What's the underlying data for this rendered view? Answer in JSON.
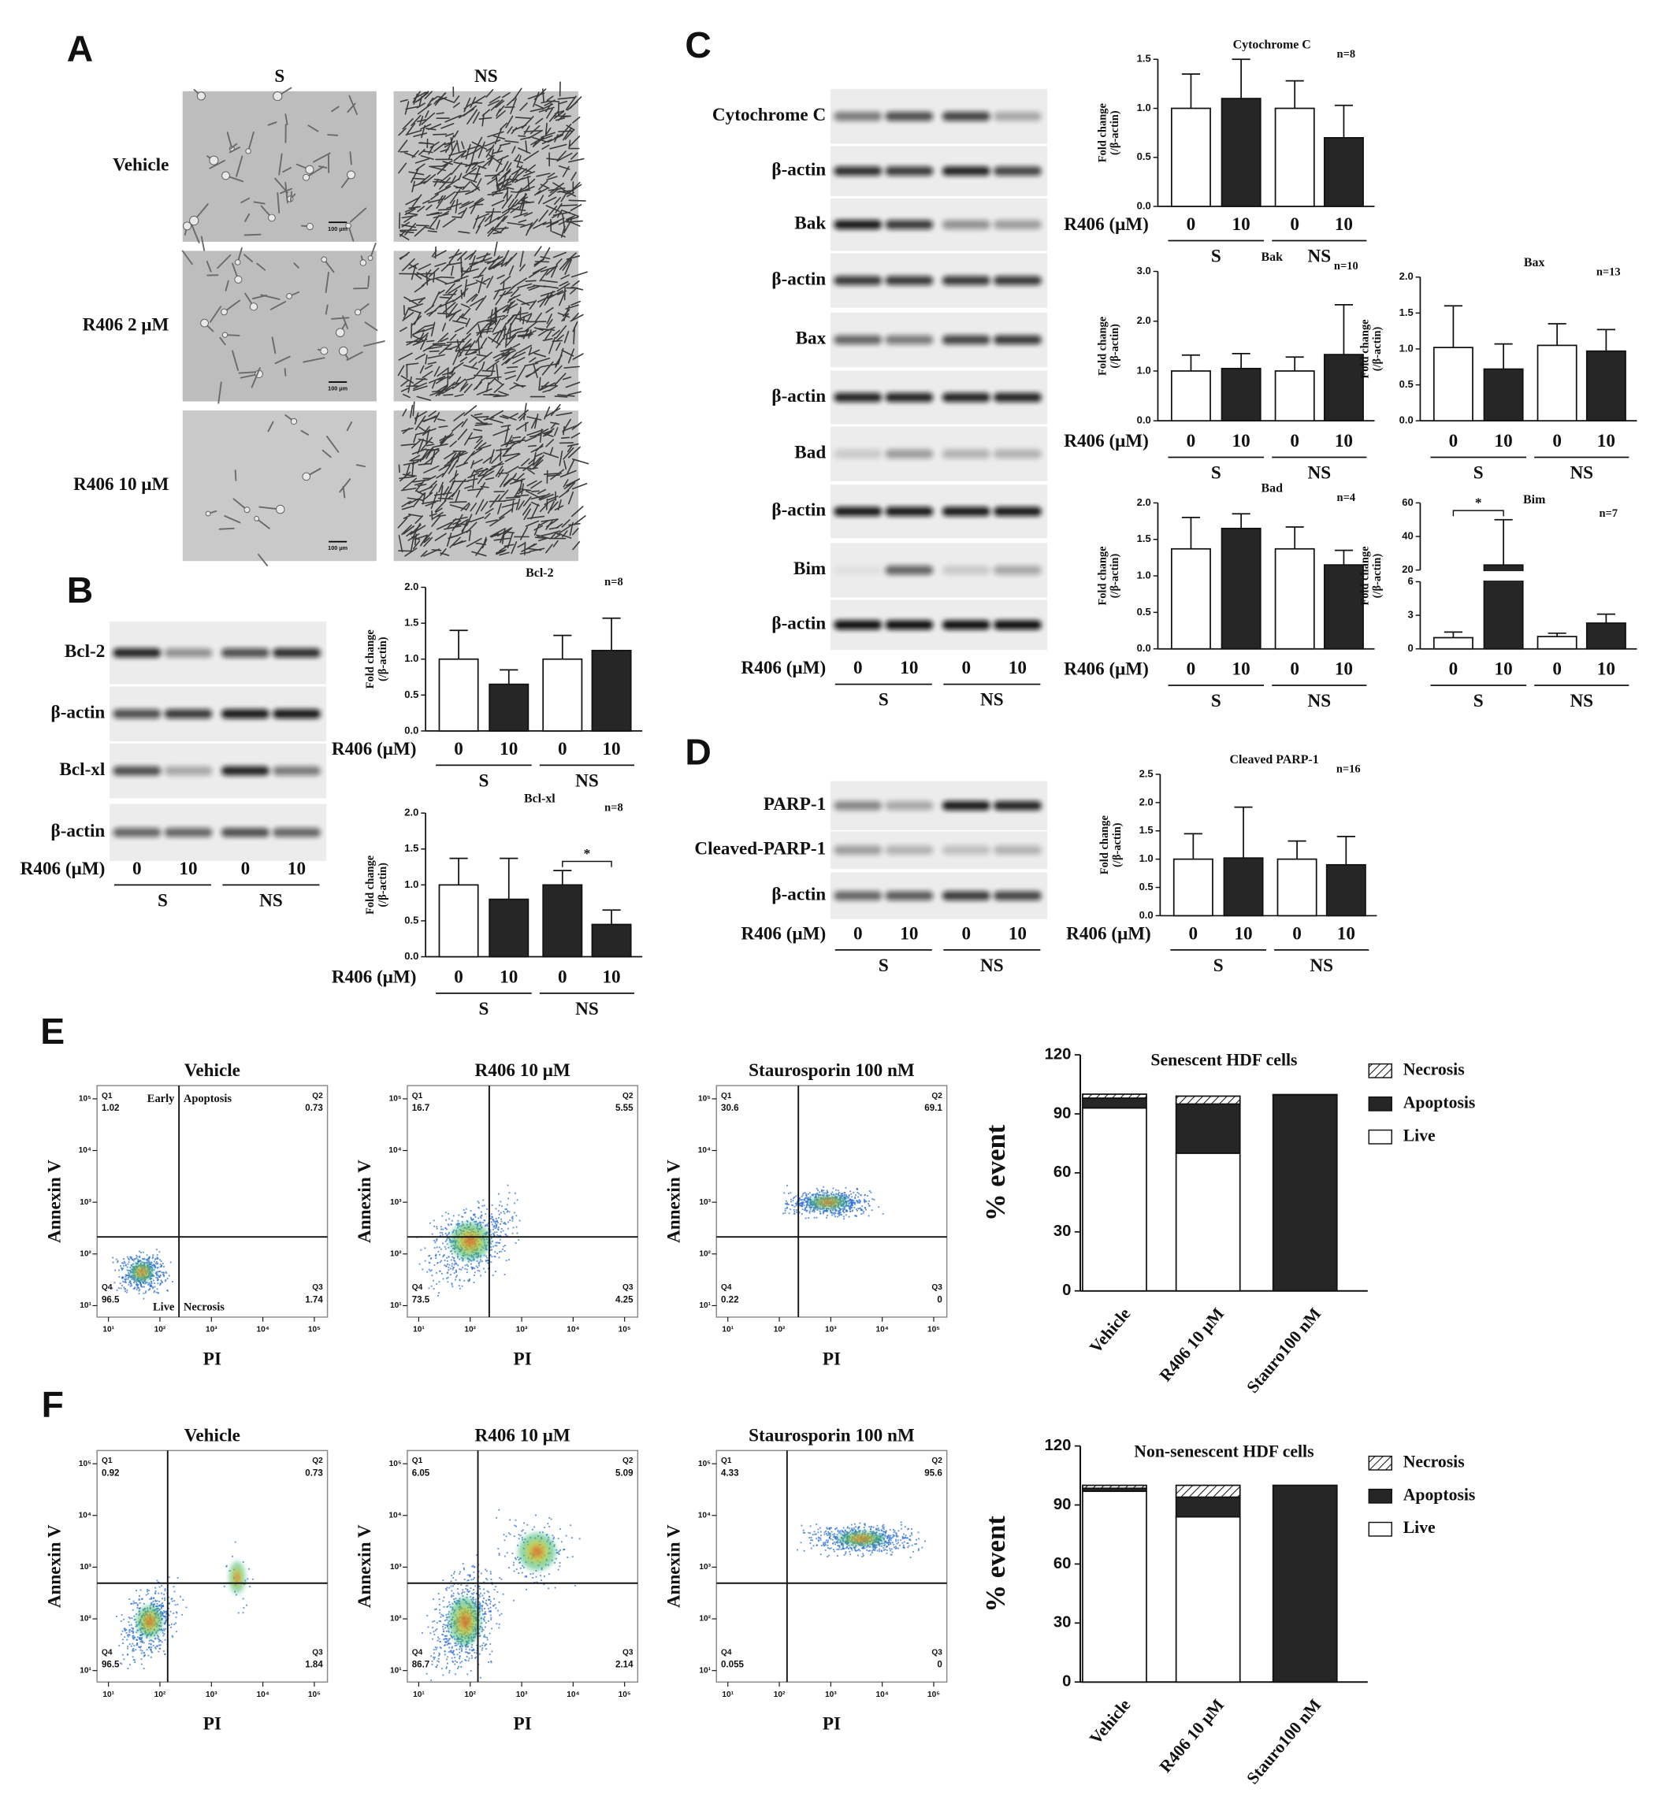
{
  "panel_labels": [
    "A",
    "B",
    "C",
    "D",
    "E",
    "F"
  ],
  "treatment_label": "R406 (μM)",
  "doses": [
    "0",
    "10",
    "0",
    "10"
  ],
  "groups": [
    "S",
    "NS"
  ],
  "fold_ylabel": [
    "Fold change",
    "(/β-actin)"
  ],
  "panel_a": {
    "columns": [
      "S",
      "NS"
    ],
    "rows": [
      "Vehicle",
      "R406 2 μM",
      "R406 10 μM"
    ],
    "scale_bar": "100 μm"
  },
  "panel_b": {
    "blots": [
      "Bcl-2",
      "β-actin",
      "Bcl-xl",
      "β-actin"
    ],
    "charts": [
      {
        "type": "bar",
        "title": "Bcl-2",
        "n_label": "n=8",
        "values": [
          1.0,
          0.65,
          1.0,
          1.12
        ],
        "errors": [
          0.4,
          0.2,
          0.33,
          0.45
        ],
        "colors": [
          "#ffffff",
          "#262626",
          "#ffffff",
          "#262626"
        ],
        "ylim": [
          0,
          2
        ],
        "yticks": [
          {
            "value": 0,
            "label": "0.0"
          },
          0.5,
          {
            "value": 1,
            "label": "1.0"
          },
          1.5,
          {
            "value": 2,
            "label": "2.0"
          }
        ]
      },
      {
        "type": "bar",
        "title": "Bcl-xl",
        "n_label": "n=8",
        "values": [
          1.0,
          0.8,
          1.0,
          0.45
        ],
        "errors": [
          0.37,
          0.57,
          0.2,
          0.2
        ],
        "colors": [
          "#ffffff",
          "#262626",
          "#262626",
          "#262626"
        ],
        "ylim": [
          0,
          2
        ],
        "yticks": [
          {
            "value": 0,
            "label": "0.0"
          },
          0.5,
          {
            "value": 1,
            "label": "1.0"
          },
          1.5,
          {
            "value": 2,
            "label": "2.0"
          }
        ],
        "significance": {
          "bars": [
            2,
            3
          ],
          "label": "*"
        }
      }
    ]
  },
  "panel_c": {
    "blots": [
      "Cytochrome C",
      "β-actin",
      "Bak",
      "β-actin",
      "Bax",
      "β-actin",
      "Bad",
      "β-actin",
      "Bim",
      "β-actin"
    ],
    "charts": [
      {
        "type": "bar",
        "title": "Cytochrome C",
        "n_label": "n=8",
        "values": [
          1.0,
          1.1,
          1.0,
          0.7
        ],
        "errors": [
          0.35,
          0.4,
          0.28,
          0.33
        ],
        "colors": [
          "#ffffff",
          "#262626",
          "#ffffff",
          "#262626"
        ],
        "ylim": [
          0,
          1.5
        ],
        "yticks": [
          {
            "value": 0,
            "label": "0.0"
          },
          0.5,
          {
            "value": 1,
            "label": "1.0"
          },
          1.5
        ]
      },
      {
        "type": "bar",
        "title": "Bak",
        "n_label": "n=10",
        "values": [
          1.0,
          1.05,
          1.0,
          1.33
        ],
        "errors": [
          0.32,
          0.3,
          0.28,
          1.0
        ],
        "colors": [
          "#ffffff",
          "#262626",
          "#ffffff",
          "#262626"
        ],
        "ylim": [
          0,
          3
        ],
        "yticks": [
          {
            "value": 0,
            "label": "0.0"
          },
          {
            "value": 1,
            "label": "1.0"
          },
          {
            "value": 2,
            "label": "2.0"
          },
          {
            "value": 3,
            "label": "3.0"
          }
        ]
      },
      {
        "type": "bar",
        "title": "Bax",
        "n_label": "n=13",
        "values": [
          1.02,
          0.72,
          1.05,
          0.97
        ],
        "errors": [
          0.58,
          0.35,
          0.3,
          0.3
        ],
        "colors": [
          "#ffffff",
          "#262626",
          "#ffffff",
          "#262626"
        ],
        "ylim": [
          0,
          2
        ],
        "yticks": [
          {
            "value": 0,
            "label": "0.0"
          },
          0.5,
          {
            "value": 1,
            "label": "1.0"
          },
          1.5,
          {
            "value": 2,
            "label": "2.0"
          }
        ]
      },
      {
        "type": "bar",
        "title": "Bad",
        "n_label": "n=4",
        "values": [
          1.37,
          1.65,
          1.37,
          1.15
        ],
        "errors": [
          0.43,
          0.2,
          0.3,
          0.2
        ],
        "colors": [
          "#ffffff",
          "#262626",
          "#ffffff",
          "#262626"
        ],
        "ylim": [
          0,
          2
        ],
        "yticks": [
          {
            "value": 0,
            "label": "0.0"
          },
          0.5,
          {
            "value": 1,
            "label": "1.0"
          },
          1.5,
          {
            "value": 2,
            "label": "2.0"
          }
        ]
      },
      {
        "type": "bar",
        "title": "Bim",
        "n_label": "n=7",
        "values": [
          1.0,
          23,
          1.1,
          2.3
        ],
        "errors": [
          0.5,
          27,
          0.3,
          0.8
        ],
        "colors": [
          "#ffffff",
          "#262626",
          "#ffffff",
          "#262626"
        ],
        "ylim": [
          0,
          60
        ],
        "axis_break": [
          6,
          20
        ],
        "yticks": [
          0,
          3,
          6,
          20,
          40,
          60
        ],
        "significance": {
          "bars": [
            0,
            1
          ],
          "label": "*"
        }
      }
    ]
  },
  "panel_d": {
    "blots": [
      "PARP-1",
      "Cleaved-PARP-1",
      "β-actin"
    ],
    "charts": [
      {
        "type": "bar",
        "title": "Cleaved PARP-1",
        "n_label": "n=16",
        "values": [
          1.0,
          1.02,
          1.0,
          0.9
        ],
        "errors": [
          0.45,
          0.9,
          0.32,
          0.5
        ],
        "colors": [
          "#ffffff",
          "#262626",
          "#ffffff",
          "#262626"
        ],
        "ylim": [
          0,
          2.5
        ],
        "yticks": [
          {
            "value": 0,
            "label": "0.0"
          },
          0.5,
          {
            "value": 1,
            "label": "1.0"
          },
          1.5,
          {
            "value": 2,
            "label": "2.0"
          },
          2.5
        ]
      }
    ]
  },
  "flow_axes": {
    "xlabel": "PI",
    "ylabel": "Annexin V",
    "log": true,
    "xlim": [
      6,
      180000
    ],
    "ylim": [
      6,
      180000
    ],
    "ticks": [
      {
        "value": 10,
        "label": "10¹"
      },
      {
        "value": 100,
        "label": "10²"
      },
      {
        "value": 1000,
        "label": "10³"
      },
      {
        "value": 10000,
        "label": "10⁴"
      },
      {
        "value": 100000,
        "label": "10⁵"
      }
    ]
  },
  "panel_e": {
    "flow_plots": [
      {
        "title": "Vehicle",
        "quadrants": [
          {
            "name": "Q1",
            "value": 1.02
          },
          {
            "name": "Q2",
            "value": 0.73
          },
          {
            "name": "Q3",
            "value": 1.74
          },
          {
            "name": "Q4",
            "value": 96.5
          }
        ],
        "annotations": [
          "Early",
          "Apoptosis",
          "Live",
          "Necrosis"
        ]
      },
      {
        "title": "R406 10 μM",
        "quadrants": [
          {
            "name": "Q1",
            "value": 16.7
          },
          {
            "name": "Q2",
            "value": 5.55
          },
          {
            "name": "Q3",
            "value": 4.25
          },
          {
            "name": "Q4",
            "value": 73.5
          }
        ]
      },
      {
        "title": "Staurosporin 100 nM",
        "quadrants": [
          {
            "name": "Q1",
            "value": 30.6
          },
          {
            "name": "Q2",
            "value": 69.1
          },
          {
            "name": "Q3",
            "value": 0
          },
          {
            "name": "Q4",
            "value": 0.22
          }
        ]
      }
    ],
    "chart": {
      "type": "stacked_bar",
      "title": "Senescent HDF cells",
      "ylabel": "% event",
      "categories": [
        "Vehicle",
        "R406 10 μM",
        "Stauro100 nM"
      ],
      "series": [
        {
          "name": "Live",
          "color": "#ffffff",
          "values": [
            93,
            70,
            0
          ]
        },
        {
          "name": "Apoptosis",
          "color": "#262626",
          "values": [
            5,
            25,
            99.6
          ]
        },
        {
          "name": "Necrosis",
          "color": "#ffffff",
          "hatched": true,
          "values": [
            2,
            4,
            0.2
          ]
        }
      ],
      "ylim": [
        0,
        120
      ],
      "yticks": [
        0,
        30,
        60,
        90,
        120
      ]
    }
  },
  "panel_f": {
    "flow_plots": [
      {
        "title": "Vehicle",
        "quadrants": [
          {
            "name": "Q1",
            "value": 0.92
          },
          {
            "name": "Q2",
            "value": 0.73
          },
          {
            "name": "Q3",
            "value": 1.84
          },
          {
            "name": "Q4",
            "value": 96.5
          }
        ]
      },
      {
        "title": "R406 10 μM",
        "quadrants": [
          {
            "name": "Q1",
            "value": 6.05
          },
          {
            "name": "Q2",
            "value": 5.09
          },
          {
            "name": "Q3",
            "value": 2.14
          },
          {
            "name": "Q4",
            "value": 86.7
          }
        ]
      },
      {
        "title": "Staurosporin 100 nM",
        "quadrants": [
          {
            "name": "Q1",
            "value": 4.33
          },
          {
            "name": "Q2",
            "value": 95.6
          },
          {
            "name": "Q3",
            "value": 0
          },
          {
            "name": "Q4",
            "value": 0.055
          }
        ]
      }
    ],
    "chart": {
      "type": "stacked_bar",
      "title": "Non-senescent HDF cells",
      "ylabel": "% event",
      "categories": [
        "Vehicle",
        "R406 10 μM",
        "Stauro100 nM"
      ],
      "series": [
        {
          "name": "Live",
          "color": "#ffffff",
          "values": [
            97,
            84,
            0
          ]
        },
        {
          "name": "Apoptosis",
          "color": "#262626",
          "values": [
            1.5,
            10,
            100
          ]
        },
        {
          "name": "Necrosis",
          "color": "#ffffff",
          "hatched": true,
          "values": [
            1.5,
            6,
            0
          ]
        }
      ],
      "ylim": [
        0,
        120
      ],
      "yticks": [
        0,
        30,
        60,
        90,
        120
      ]
    }
  }
}
